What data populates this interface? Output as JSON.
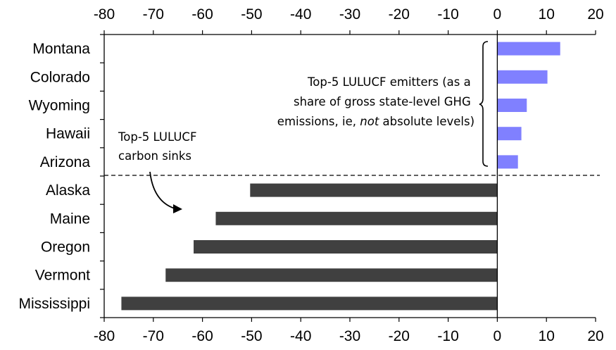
{
  "chart_data": {
    "type": "bar",
    "orientation": "horizontal",
    "categories": [
      "Montana",
      "Colorado",
      "Wyoming",
      "Hawaii",
      "Arizona",
      "Alaska",
      "Maine",
      "Oregon",
      "Vermont",
      "Mississippi"
    ],
    "values": [
      12.8,
      10.2,
      6.0,
      4.9,
      4.2,
      -50.3,
      -57.3,
      -61.8,
      -67.5,
      -76.5
    ],
    "xlim": [
      -80,
      20
    ],
    "xticks": [
      -80,
      -70,
      -60,
      -50,
      -40,
      -30,
      -20,
      -10,
      0,
      10,
      20
    ],
    "grid": false,
    "colors": {
      "emitters": "#8080ff",
      "sinks": "#404040"
    },
    "annotations": {
      "emitters": {
        "lines": [
          "Top-5 LULUCF emitters (as a",
          "share of gross state-level GHG",
          "emissions, ie,",
          "not",
          "absolute levels)"
        ]
      },
      "sinks": {
        "lines": [
          "Top-5 LULUCF",
          "carbon sinks"
        ]
      }
    }
  }
}
